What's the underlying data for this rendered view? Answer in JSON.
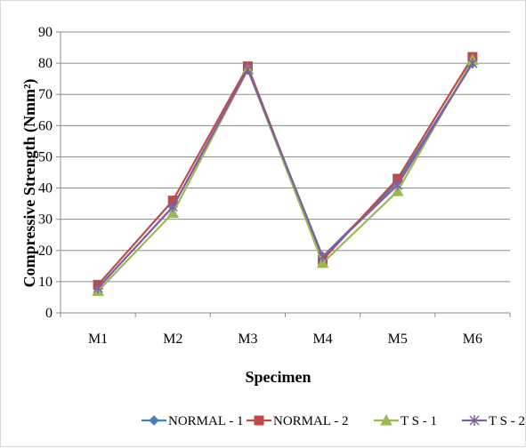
{
  "chart_data": {
    "type": "line",
    "categories": [
      "M1",
      "M2",
      "M3",
      "M4",
      "M5",
      "M6"
    ],
    "series": [
      {
        "name": "NORMAL - 1",
        "values": [
          8,
          34,
          78,
          18,
          42,
          80
        ],
        "color": "#4a7ebb",
        "marker": "diamond"
      },
      {
        "name": "NORMAL - 2",
        "values": [
          9,
          36,
          79,
          17,
          43,
          82
        ],
        "color": "#be4b48",
        "marker": "square"
      },
      {
        "name": "T S - 1",
        "values": [
          7,
          32,
          78,
          16,
          39,
          81
        ],
        "color": "#98b954",
        "marker": "triangle"
      },
      {
        "name": "T S - 2",
        "values": [
          8,
          34,
          78,
          18,
          41,
          80
        ],
        "color": "#7d60a0",
        "marker": "x"
      }
    ],
    "title": "",
    "xlabel": "Specimen",
    "ylabel": "Compressive Strength (Nmm²)",
    "ylim": [
      0,
      90
    ],
    "yticks": [
      "0",
      "10",
      "20",
      "30",
      "40",
      "50",
      "60",
      "70",
      "80",
      "90"
    ],
    "grid": true,
    "legend_position": "bottom"
  }
}
